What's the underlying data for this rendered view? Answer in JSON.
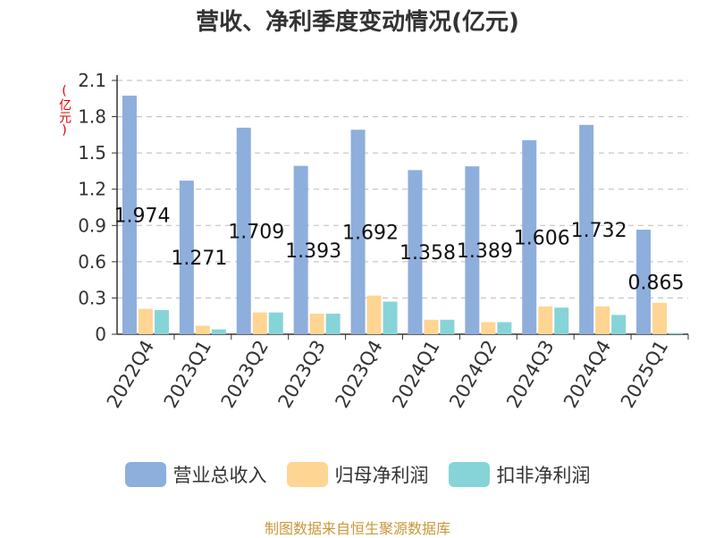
{
  "page_title": "营收、净利季度变动情况(亿元)",
  "unit_label": "(亿元)",
  "source_note": "制图数据来自恒生聚源数据库",
  "colors": {
    "revenue": "#8eaedc",
    "net_profit": "#fed592",
    "deducted_net_profit": "#86d4d8",
    "grid": "#bbbbbb",
    "axis": "#333333",
    "label": "#111111"
  },
  "chart_data": {
    "type": "bar",
    "title": "营收、净利季度变动情况(亿元)",
    "ylabel": "(亿元)",
    "categories": [
      "2022Q4",
      "2023Q1",
      "2023Q2",
      "2023Q3",
      "2023Q4",
      "2024Q1",
      "2024Q2",
      "2024Q3",
      "2024Q4",
      "2025Q1"
    ],
    "yticks": [
      "0",
      "0.3",
      "0.6",
      "0.9",
      "1.2",
      "1.5",
      "1.8",
      "2.1"
    ],
    "ylim": [
      0,
      2.1
    ],
    "grid": true,
    "legend_position": "bottom",
    "series": [
      {
        "name": "营业总收入",
        "values": [
          1.974,
          1.271,
          1.709,
          1.393,
          1.692,
          1.358,
          1.389,
          1.606,
          1.732,
          0.865
        ],
        "labels": [
          "1.974",
          "1.271",
          "1.709",
          "1.393",
          "1.692",
          "1.358",
          "1.389",
          "1.606",
          "1.732",
          "0.865"
        ]
      },
      {
        "name": "归母净利润",
        "values": [
          0.21,
          0.07,
          0.18,
          0.17,
          0.32,
          0.12,
          0.1,
          0.23,
          0.23,
          0.26
        ]
      },
      {
        "name": "扣非净利润",
        "values": [
          0.2,
          0.04,
          0.18,
          0.17,
          0.27,
          0.12,
          0.1,
          0.22,
          0.16,
          0.01
        ]
      }
    ]
  }
}
